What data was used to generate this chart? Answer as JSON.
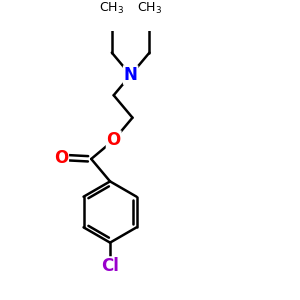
{
  "background_color": "#ffffff",
  "atom_colors": {
    "N": "#0000ff",
    "O": "#ff0000",
    "Cl": "#9900cc",
    "C": "#000000"
  },
  "font_size_atom": 12,
  "font_size_label": 9,
  "line_width": 1.8,
  "line_color": "#000000",
  "figsize": [
    3.0,
    3.0
  ],
  "dpi": 100,
  "xlim": [
    0,
    10
  ],
  "ylim": [
    0,
    10
  ]
}
